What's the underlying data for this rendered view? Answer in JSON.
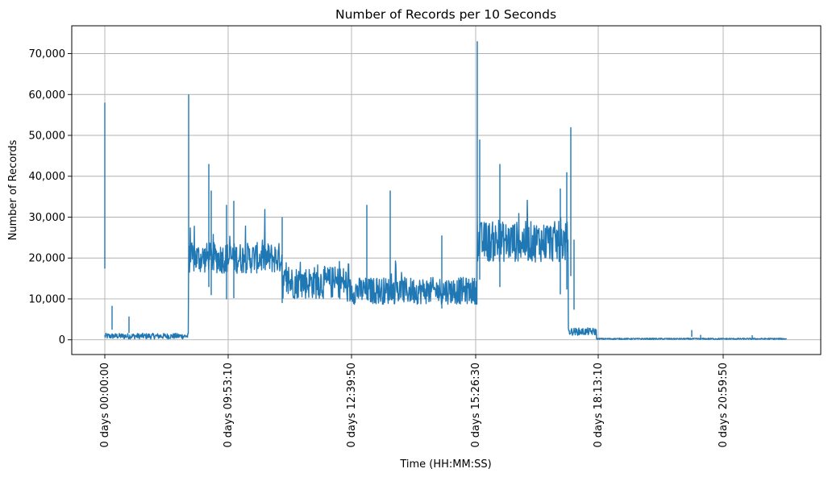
{
  "chart_data": {
    "type": "line",
    "title": "Number of Records per 10 Seconds",
    "xlabel": "Time (HH:MM:SS)",
    "ylabel": "Number of Records",
    "grid": true,
    "legend": "none",
    "color": "#1f77b4",
    "x_ticks": [
      {
        "seconds": 0,
        "label": "0 days 00:00:00"
      },
      {
        "seconds": 35590,
        "label": "0 days 09:53:10"
      },
      {
        "seconds": 45590,
        "label": "0 days 12:39:50"
      },
      {
        "seconds": 55590,
        "label": "0 days 15:26:30"
      },
      {
        "seconds": 65590,
        "label": "0 days 18:13:10"
      },
      {
        "seconds": 75590,
        "label": "0 days 20:59:50"
      }
    ],
    "y_ticks": [
      {
        "value": 0,
        "label": "0"
      },
      {
        "value": 10000,
        "label": "10,000"
      },
      {
        "value": 20000,
        "label": "20,000"
      },
      {
        "value": 30000,
        "label": "30,000"
      },
      {
        "value": 40000,
        "label": "40,000"
      },
      {
        "value": 50000,
        "label": "50,000"
      },
      {
        "value": 60000,
        "label": "60,000"
      },
      {
        "value": 70000,
        "label": "70,000"
      }
    ],
    "xlim": [
      -2700,
      58600
    ],
    "ylim": [
      -3600,
      76800
    ],
    "segments": [
      {
        "start": 0,
        "end": 6800,
        "base": 900,
        "noise": 700
      },
      {
        "start": 6800,
        "end": 21300,
        "base": 20000,
        "noise": 3800
      },
      {
        "start": 21300,
        "end": 30000,
        "base": 14000,
        "noise": 4000
      },
      {
        "start": 30000,
        "end": 38200,
        "base": 11500,
        "noise": 3200
      },
      {
        "start": 38200,
        "end": 55590,
        "base": 11500,
        "noise": 3200
      },
      {
        "start": 29950,
        "end": 30000,
        "base": 14000,
        "noise": 4000
      },
      {
        "start": 30000,
        "end": 37900,
        "base": 25000,
        "noise": 5000
      },
      {
        "start": 37900,
        "end": 39800,
        "base": 2000,
        "noise": 900
      },
      {
        "start": 39800,
        "end": 55200,
        "base": 250,
        "noise": 150
      }
    ],
    "peaks": [
      {
        "seconds": 0,
        "value": 58000
      },
      {
        "seconds": 650,
        "value": 8300
      },
      {
        "seconds": 2000,
        "value": 5700
      },
      {
        "seconds": 6850,
        "value": 60000
      },
      {
        "seconds": 8400,
        "value": 43000
      },
      {
        "seconds": 9800,
        "value": 33000
      },
      {
        "seconds": 14800,
        "value": 30000
      },
      {
        "seconds": 21600,
        "value": 33000
      },
      {
        "seconds": 23300,
        "value": 36500
      },
      {
        "seconds": 27900,
        "value": 25500
      },
      {
        "seconds": 30100,
        "value": 73000
      },
      {
        "seconds": 31900,
        "value": 43000
      },
      {
        "seconds": 37300,
        "value": 41000
      },
      {
        "seconds": 37800,
        "value": 52000
      },
      {
        "seconds": 47700,
        "value": 2400
      },
      {
        "seconds": 52600,
        "value": 1200
      }
    ]
  }
}
